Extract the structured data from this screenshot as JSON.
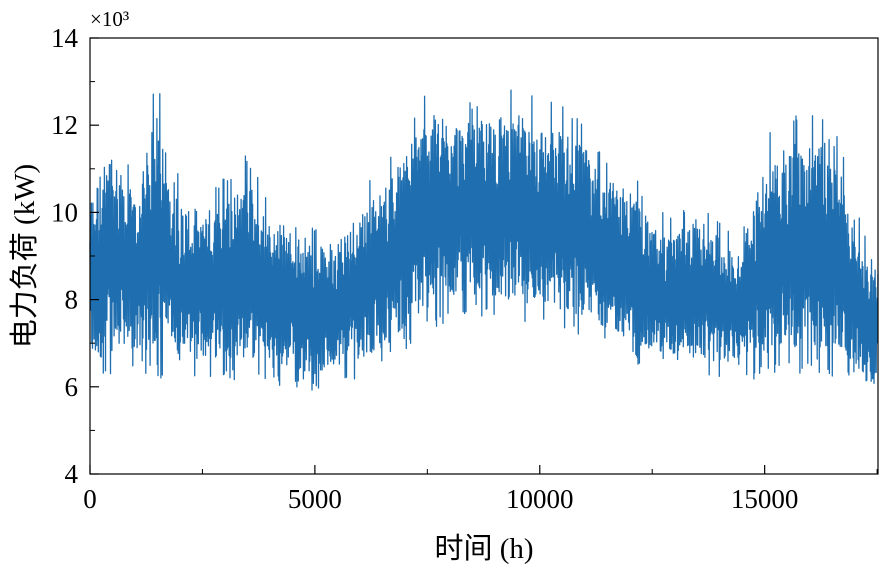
{
  "chart_data": {
    "type": "line",
    "title": "",
    "xlabel": "时间 (h)",
    "ylabel": "电力负荷 (kW)",
    "y_multiplier_label": "×10³",
    "xlim": [
      0,
      17520
    ],
    "ylim": [
      4,
      14
    ],
    "x_ticks": [
      0,
      5000,
      10000,
      15000
    ],
    "x_tick_labels": [
      "0",
      "5000",
      "10000",
      "15000"
    ],
    "y_ticks": [
      4,
      6,
      8,
      10,
      12,
      14
    ],
    "y_tick_labels": [
      "4",
      "6",
      "8",
      "10",
      "12",
      "14"
    ],
    "grid": false,
    "legend": "none",
    "series": [
      {
        "color": "#1f6fb0",
        "envelope": {
          "x": [
            0,
            500,
            1000,
            1500,
            2000,
            2500,
            3000,
            3500,
            4000,
            4500,
            5000,
            5500,
            6000,
            6500,
            7000,
            7500,
            8000,
            8500,
            9000,
            9500,
            10000,
            10500,
            11000,
            11500,
            12000,
            12500,
            13000,
            13500,
            14000,
            14500,
            15000,
            15500,
            16000,
            16500,
            17000,
            17400,
            17520
          ],
          "upper": [
            11.0,
            12.2,
            10.8,
            13.2,
            10.8,
            10.5,
            10.8,
            11.4,
            10.2,
            10.3,
            9.6,
            9.8,
            10.6,
            11.0,
            12.0,
            12.9,
            12.8,
            12.6,
            12.8,
            12.9,
            12.6,
            12.5,
            12.1,
            11.2,
            11.1,
            10.1,
            9.9,
            10.4,
            9.8,
            9.6,
            11.7,
            12.4,
            12.3,
            12.4,
            10.3,
            9.0,
            9.4
          ],
          "lower": [
            6.0,
            6.2,
            6.3,
            6.2,
            6.1,
            6.2,
            6.2,
            6.1,
            6.0,
            6.0,
            5.9,
            6.1,
            6.2,
            6.4,
            6.8,
            7.2,
            7.5,
            7.6,
            7.5,
            7.4,
            7.3,
            7.2,
            7.1,
            6.9,
            6.6,
            6.3,
            6.2,
            6.2,
            6.2,
            6.1,
            6.2,
            6.2,
            6.3,
            6.2,
            6.1,
            5.5,
            6.2
          ]
        }
      }
    ]
  }
}
